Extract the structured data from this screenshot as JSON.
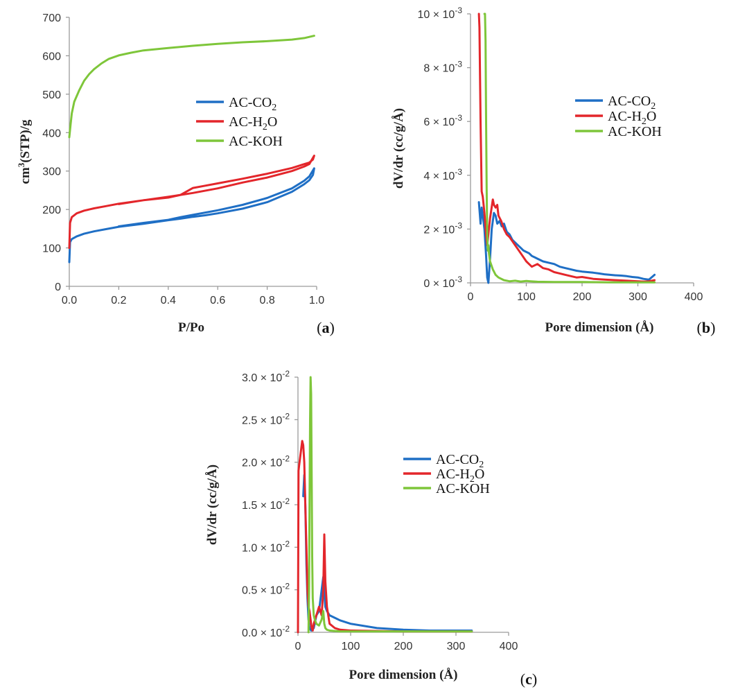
{
  "colors": {
    "blue": "#1f6fc5",
    "red": "#e3262b",
    "green": "#7ec63a"
  },
  "chart_data": [
    {
      "id": "a",
      "type": "line",
      "panel_label": "a",
      "xlabel": "P/Po",
      "ylabel": "cm3(STP)/g",
      "xlim": [
        0,
        1
      ],
      "ylim": [
        0,
        700
      ],
      "xticks": [
        "0.0",
        "0.2",
        "0.4",
        "0.6",
        "0.8",
        "1.0"
      ],
      "yticks": [
        "0",
        "100",
        "200",
        "300",
        "400",
        "500",
        "600",
        "700"
      ],
      "legend_position": "center-right",
      "series": [
        {
          "name": "AC-CO2",
          "label_main": "AC-CO",
          "label_sub": "2",
          "label_tail": "",
          "color": "blue",
          "x": [
            0.0,
            0.003,
            0.01,
            0.03,
            0.06,
            0.1,
            0.15,
            0.2,
            0.3,
            0.4,
            0.45,
            0.5,
            0.55,
            0.6,
            0.7,
            0.8,
            0.9,
            0.95,
            0.97,
            0.985,
            0.99,
            0.97,
            0.95,
            0.9,
            0.8,
            0.7,
            0.6,
            0.5,
            0.45,
            0.4,
            0.3,
            0.2
          ],
          "y": [
            63,
            115,
            123,
            130,
            137,
            143,
            149,
            155,
            163,
            172,
            176,
            181,
            185,
            190,
            202,
            219,
            246,
            266,
            276,
            290,
            307,
            286,
            275,
            255,
            230,
            212,
            198,
            186,
            180,
            173,
            165,
            156
          ]
        },
        {
          "name": "AC-H2O",
          "label_main": "AC-H",
          "label_sub": "2",
          "label_tail": "O",
          "color": "red",
          "x": [
            0.0,
            0.003,
            0.01,
            0.03,
            0.06,
            0.1,
            0.15,
            0.2,
            0.3,
            0.4,
            0.45,
            0.5,
            0.55,
            0.6,
            0.7,
            0.8,
            0.9,
            0.95,
            0.97,
            0.985,
            0.99,
            0.97,
            0.95,
            0.9,
            0.8,
            0.7,
            0.6,
            0.5,
            0.45,
            0.4,
            0.3,
            0.2
          ],
          "y": [
            100,
            165,
            180,
            190,
            197,
            203,
            209,
            215,
            224,
            231,
            238,
            256,
            262,
            268,
            280,
            293,
            308,
            318,
            322,
            330,
            340,
            318,
            312,
            300,
            283,
            270,
            255,
            243,
            238,
            233,
            224,
            214
          ]
        },
        {
          "name": "AC-KOH",
          "label_main": "AC-KOH",
          "label_sub": "",
          "label_tail": "",
          "color": "green",
          "x": [
            0.0,
            0.005,
            0.01,
            0.02,
            0.04,
            0.06,
            0.08,
            0.1,
            0.13,
            0.16,
            0.2,
            0.25,
            0.3,
            0.4,
            0.5,
            0.6,
            0.7,
            0.8,
            0.9,
            0.95,
            0.99
          ],
          "y": [
            388,
            420,
            450,
            480,
            510,
            535,
            552,
            565,
            580,
            592,
            601,
            608,
            614,
            620,
            626,
            631,
            635,
            638,
            642,
            646,
            652
          ]
        }
      ]
    },
    {
      "id": "b",
      "type": "line",
      "panel_label": "b",
      "xlabel": "Pore dimension (Å)",
      "ylabel": "dV/dr (cc/g/Å)",
      "xlim": [
        0,
        400
      ],
      "ylim": [
        0,
        10
      ],
      "xticks": [
        "0",
        "100",
        "200",
        "300",
        "400"
      ],
      "yticks": [
        "0",
        "2",
        "4",
        "6",
        "8",
        "10"
      ],
      "ytick_suffix": "-3",
      "legend_position": "top-right",
      "series": [
        {
          "name": "AC-CO2",
          "label_main": "AC-CO",
          "label_sub": "2",
          "label_tail": "",
          "color": "blue",
          "x": [
            15,
            18,
            20,
            22,
            25,
            28,
            30,
            32,
            35,
            38,
            42,
            45,
            48,
            52,
            56,
            60,
            65,
            70,
            75,
            80,
            85,
            90,
            95,
            100,
            105,
            110,
            115,
            120,
            130,
            140,
            150,
            160,
            170,
            180,
            190,
            200,
            210,
            220,
            230,
            240,
            250,
            260,
            270,
            280,
            290,
            300,
            310,
            320,
            330
          ],
          "y": [
            3.0,
            2.2,
            2.8,
            2.5,
            2.0,
            1.0,
            0.2,
            0.0,
            0.9,
            2.0,
            2.6,
            2.5,
            2.2,
            2.3,
            2.1,
            2.2,
            1.9,
            1.8,
            1.6,
            1.5,
            1.4,
            1.3,
            1.2,
            1.15,
            1.1,
            1.0,
            0.95,
            0.9,
            0.8,
            0.75,
            0.7,
            0.6,
            0.55,
            0.5,
            0.45,
            0.42,
            0.4,
            0.38,
            0.35,
            0.32,
            0.3,
            0.28,
            0.27,
            0.25,
            0.22,
            0.2,
            0.15,
            0.12,
            0.3
          ]
        },
        {
          "name": "AC-H2O",
          "label_main": "AC-H",
          "label_sub": "2",
          "label_tail": "O",
          "color": "red",
          "x": [
            15,
            16,
            18,
            20,
            22,
            25,
            28,
            30,
            35,
            40,
            42,
            45,
            48,
            50,
            55,
            60,
            65,
            70,
            80,
            90,
            100,
            110,
            120,
            130,
            140,
            150,
            160,
            170,
            180,
            190,
            200,
            220,
            240,
            260,
            280,
            300,
            310,
            320,
            330
          ],
          "y": [
            10.0,
            9.5,
            6.0,
            3.4,
            3.2,
            2.6,
            1.8,
            1.4,
            2.4,
            3.1,
            2.9,
            2.8,
            2.9,
            2.5,
            2.3,
            2.0,
            1.8,
            1.7,
            1.4,
            1.1,
            0.8,
            0.6,
            0.7,
            0.55,
            0.5,
            0.4,
            0.35,
            0.3,
            0.25,
            0.2,
            0.22,
            0.15,
            0.12,
            0.1,
            0.08,
            0.06,
            0.05,
            0.06,
            0.1
          ]
        },
        {
          "name": "AC-KOH",
          "label_main": "AC-KOH",
          "label_sub": "",
          "label_tail": "",
          "color": "green",
          "x": [
            25,
            26,
            27,
            28,
            29,
            30,
            31,
            32,
            33,
            35,
            40,
            45,
            50,
            60,
            70,
            80,
            90,
            100,
            120,
            150,
            200,
            250,
            300,
            330
          ],
          "y": [
            10.0,
            10.0,
            9.0,
            6.0,
            3.5,
            1.8,
            1.2,
            1.4,
            1.1,
            0.8,
            0.5,
            0.3,
            0.2,
            0.1,
            0.06,
            0.08,
            0.05,
            0.07,
            0.04,
            0.03,
            0.03,
            0.02,
            0.02,
            0.02
          ]
        }
      ]
    },
    {
      "id": "c",
      "type": "line",
      "panel_label": "c",
      "xlabel": "Pore dimension (Å)",
      "ylabel": "dV/dr (cc/g/Å)",
      "xlim": [
        0,
        400
      ],
      "ylim": [
        0,
        3.0
      ],
      "xticks": [
        "0",
        "100",
        "200",
        "300",
        "400"
      ],
      "yticks": [
        "0.0",
        "0.5",
        "1.0",
        "1.5",
        "2.0",
        "2.5",
        "3.0"
      ],
      "ytick_suffix": "-2",
      "legend_position": "center-right",
      "series": [
        {
          "name": "AC-CO2",
          "label_main": "AC-CO",
          "label_sub": "2",
          "label_tail": "",
          "color": "blue",
          "x": [
            10,
            12,
            14,
            16,
            18,
            20,
            22,
            25,
            30,
            35,
            40,
            45,
            48,
            50,
            52,
            55,
            60,
            70,
            80,
            100,
            150,
            200,
            250,
            300,
            330
          ],
          "y": [
            1.6,
            1.85,
            1.5,
            0.8,
            0.4,
            0.15,
            0.05,
            0.02,
            0.05,
            0.2,
            0.25,
            0.5,
            0.65,
            0.45,
            0.3,
            0.25,
            0.2,
            0.17,
            0.14,
            0.1,
            0.05,
            0.03,
            0.02,
            0.02,
            0.02
          ]
        },
        {
          "name": "AC-H2O",
          "label_main": "AC-H",
          "label_sub": "2",
          "label_tail": "O",
          "color": "red",
          "x": [
            0,
            1,
            2,
            5,
            8,
            10,
            12,
            14,
            16,
            18,
            20,
            22,
            24,
            26,
            28,
            30,
            35,
            40,
            45,
            48,
            50,
            52,
            55,
            60,
            70,
            80,
            100,
            200,
            330
          ],
          "y": [
            0.0,
            1.9,
            1.95,
            2.1,
            2.25,
            2.2,
            2.0,
            1.5,
            1.0,
            0.5,
            0.3,
            0.25,
            0.15,
            0.05,
            0.02,
            0.1,
            0.2,
            0.3,
            0.2,
            0.5,
            1.15,
            0.6,
            0.3,
            0.1,
            0.05,
            0.03,
            0.02,
            0.01,
            0.01
          ]
        },
        {
          "name": "AC-KOH",
          "label_main": "AC-KOH",
          "label_sub": "",
          "label_tail": "",
          "color": "green",
          "x": [
            20,
            21,
            22,
            23,
            24,
            25,
            26,
            27,
            28,
            30,
            32,
            35,
            40,
            45,
            48,
            50,
            52,
            55,
            60,
            80,
            100,
            150,
            200,
            250,
            300,
            330
          ],
          "y": [
            0.0,
            0.5,
            1.5,
            2.5,
            3.0,
            2.8,
            1.8,
            0.9,
            0.4,
            0.2,
            0.15,
            0.1,
            0.08,
            0.15,
            0.25,
            0.1,
            0.05,
            0.03,
            0.02,
            0.01,
            0.01,
            0.01,
            0.01,
            0.01,
            0.01,
            0.01
          ]
        }
      ]
    }
  ]
}
